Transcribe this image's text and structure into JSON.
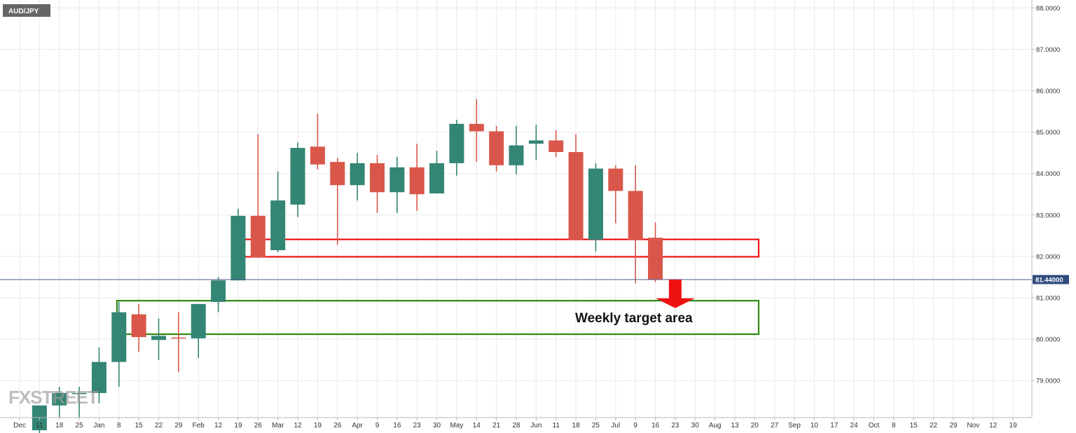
{
  "symbol": "AUD/JPY",
  "watermark": "FXSTREET",
  "current_price_label": "81.44000",
  "annotation": "Weekly target area",
  "colors": {
    "up": "#338574",
    "down": "#d9574a",
    "price_line": "#4a5a8c",
    "price_tag": "#2f4a7d",
    "resistance_box": "#ee1111",
    "target_box": "#2d8a12",
    "arrow": "#ee1111"
  },
  "chart_data": {
    "type": "candlestick",
    "timeframe": "weekly",
    "x_tick_labels": [
      "Dec",
      "11",
      "18",
      "25",
      "Jan",
      "8",
      "15",
      "22",
      "29",
      "Feb",
      "12",
      "19",
      "26",
      "Mar",
      "12",
      "19",
      "26",
      "Apr",
      "9",
      "16",
      "23",
      "30",
      "May",
      "14",
      "21",
      "28",
      "Jun",
      "11",
      "18",
      "25",
      "Jul",
      "9",
      "16",
      "23",
      "30",
      "Aug",
      "13",
      "20",
      "27",
      "Sep",
      "10",
      "17",
      "24",
      "Oct",
      "8",
      "15",
      "22",
      "29",
      "Nov",
      "12",
      "19"
    ],
    "ylim": [
      78.1,
      88.1
    ],
    "y_ticks": [
      79,
      80,
      81,
      82,
      83,
      84,
      85,
      86,
      87,
      88
    ],
    "y_tick_labels": [
      "79.0000",
      "80.0000",
      "81.0000",
      "82.0000",
      "83.0000",
      "84.0000",
      "85.0000",
      "86.0000",
      "87.0000",
      "88.0000"
    ],
    "current_price": 81.44,
    "candles": [
      {
        "x": 1,
        "o": 77.8,
        "h": 78.4,
        "l": 77.5,
        "c": 78.4
      },
      {
        "x": 2,
        "o": 78.4,
        "h": 78.85,
        "l": 78.1,
        "c": 78.7
      },
      {
        "x": 3,
        "o": 78.7,
        "h": 78.85,
        "l": 78.1,
        "c": 78.7
      },
      {
        "x": 4,
        "o": 78.7,
        "h": 79.8,
        "l": 78.45,
        "c": 79.45
      },
      {
        "x": 5,
        "o": 79.45,
        "h": 80.9,
        "l": 78.85,
        "c": 80.65
      },
      {
        "x": 6,
        "o": 80.6,
        "h": 80.85,
        "l": 79.7,
        "c": 80.05
      },
      {
        "x": 7,
        "o": 79.98,
        "h": 80.5,
        "l": 79.5,
        "c": 80.08
      },
      {
        "x": 8,
        "o": 80.04,
        "h": 80.65,
        "l": 79.2,
        "c": 80.02
      },
      {
        "x": 9,
        "o": 80.02,
        "h": 80.85,
        "l": 79.55,
        "c": 80.85
      },
      {
        "x": 10,
        "o": 80.9,
        "h": 81.5,
        "l": 80.65,
        "c": 81.42
      },
      {
        "x": 11,
        "o": 81.42,
        "h": 83.15,
        "l": 81.42,
        "c": 82.98
      },
      {
        "x": 12,
        "o": 82.98,
        "h": 84.95,
        "l": 81.98,
        "c": 81.98
      },
      {
        "x": 13,
        "o": 82.15,
        "h": 84.05,
        "l": 82.1,
        "c": 83.35
      },
      {
        "x": 14,
        "o": 83.25,
        "h": 84.75,
        "l": 82.95,
        "c": 84.62
      },
      {
        "x": 15,
        "o": 84.65,
        "h": 85.45,
        "l": 84.1,
        "c": 84.22
      },
      {
        "x": 16,
        "o": 84.28,
        "h": 84.38,
        "l": 82.28,
        "c": 83.72
      },
      {
        "x": 17,
        "o": 83.72,
        "h": 84.5,
        "l": 83.35,
        "c": 84.25
      },
      {
        "x": 18,
        "o": 84.25,
        "h": 84.45,
        "l": 83.05,
        "c": 83.55
      },
      {
        "x": 19,
        "o": 83.55,
        "h": 84.4,
        "l": 83.05,
        "c": 84.15
      },
      {
        "x": 20,
        "o": 84.15,
        "h": 84.72,
        "l": 83.1,
        "c": 83.5
      },
      {
        "x": 21,
        "o": 83.52,
        "h": 84.55,
        "l": 83.52,
        "c": 84.25
      },
      {
        "x": 22,
        "o": 84.25,
        "h": 85.3,
        "l": 83.95,
        "c": 85.2
      },
      {
        "x": 23,
        "o": 85.2,
        "h": 85.8,
        "l": 84.28,
        "c": 85.02
      },
      {
        "x": 24,
        "o": 85.02,
        "h": 85.15,
        "l": 84.05,
        "c": 84.2
      },
      {
        "x": 25,
        "o": 84.2,
        "h": 85.15,
        "l": 83.98,
        "c": 84.68
      },
      {
        "x": 26,
        "o": 84.72,
        "h": 85.18,
        "l": 84.32,
        "c": 84.8
      },
      {
        "x": 27,
        "o": 84.8,
        "h": 85.05,
        "l": 84.4,
        "c": 84.52
      },
      {
        "x": 28,
        "o": 84.52,
        "h": 84.95,
        "l": 82.4,
        "c": 82.4
      },
      {
        "x": 29,
        "o": 82.4,
        "h": 84.25,
        "l": 82.12,
        "c": 84.12
      },
      {
        "x": 30,
        "o": 84.12,
        "h": 84.2,
        "l": 82.8,
        "c": 83.58
      },
      {
        "x": 31,
        "o": 83.58,
        "h": 84.2,
        "l": 81.35,
        "c": 82.4
      },
      {
        "x": 32,
        "o": 82.45,
        "h": 82.82,
        "l": 81.38,
        "c": 81.44
      }
    ],
    "zones": [
      {
        "type": "resistance",
        "x_from": 11.2,
        "x_to": 37.2,
        "y_from": 81.99,
        "y_to": 82.41
      },
      {
        "type": "target",
        "x_from": 4.9,
        "x_to": 37.2,
        "y_from": 80.12,
        "y_to": 80.93
      }
    ],
    "arrow": {
      "x": 33,
      "y_from": 81.44,
      "y_to": 80.75
    }
  }
}
